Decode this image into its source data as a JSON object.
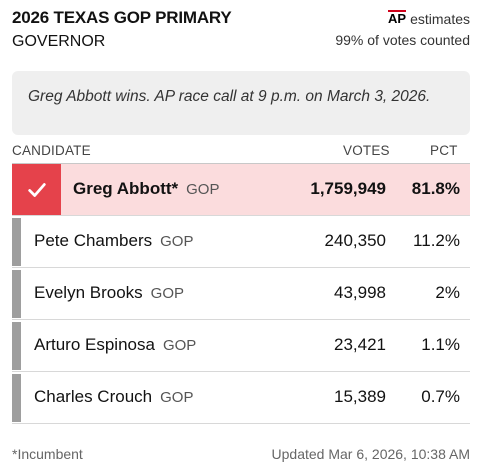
{
  "header": {
    "title": "2026 TEXAS GOP PRIMARY",
    "office": "GOVERNOR",
    "ap_logo": "AP",
    "estimates_label": "estimates",
    "votes_counted": "99% of votes counted"
  },
  "race_call": {
    "text": "Greg Abbott wins. AP race call at 9 p.m. on March 3, 2026."
  },
  "table": {
    "headers": {
      "candidate": "CANDIDATE",
      "votes": "VOTES",
      "pct": "PCT"
    },
    "rows": [
      {
        "name": "Greg Abbott*",
        "party": "GOP",
        "votes": "1,759,949",
        "pct": "81.8%",
        "winner": true
      },
      {
        "name": "Pete Chambers",
        "party": "GOP",
        "votes": "240,350",
        "pct": "11.2%",
        "winner": false
      },
      {
        "name": "Evelyn Brooks",
        "party": "GOP",
        "votes": "43,998",
        "pct": "2%",
        "winner": false
      },
      {
        "name": "Arturo Espinosa",
        "party": "GOP",
        "votes": "23,421",
        "pct": "1.1%",
        "winner": false
      },
      {
        "name": "Charles Crouch",
        "party": "GOP",
        "votes": "15,389",
        "pct": "0.7%",
        "winner": false
      }
    ]
  },
  "footer": {
    "incumbent_note": "*Incumbent",
    "updated": "Updated Mar 6, 2026, 10:38 AM"
  },
  "colors": {
    "winner_row_bg": "#fbdcdd",
    "winner_check_bg": "#e5424b",
    "candidate_bar": "#9e9e9e",
    "ap_accent": "#d0021b"
  },
  "icons": {
    "winner": "check-icon"
  }
}
